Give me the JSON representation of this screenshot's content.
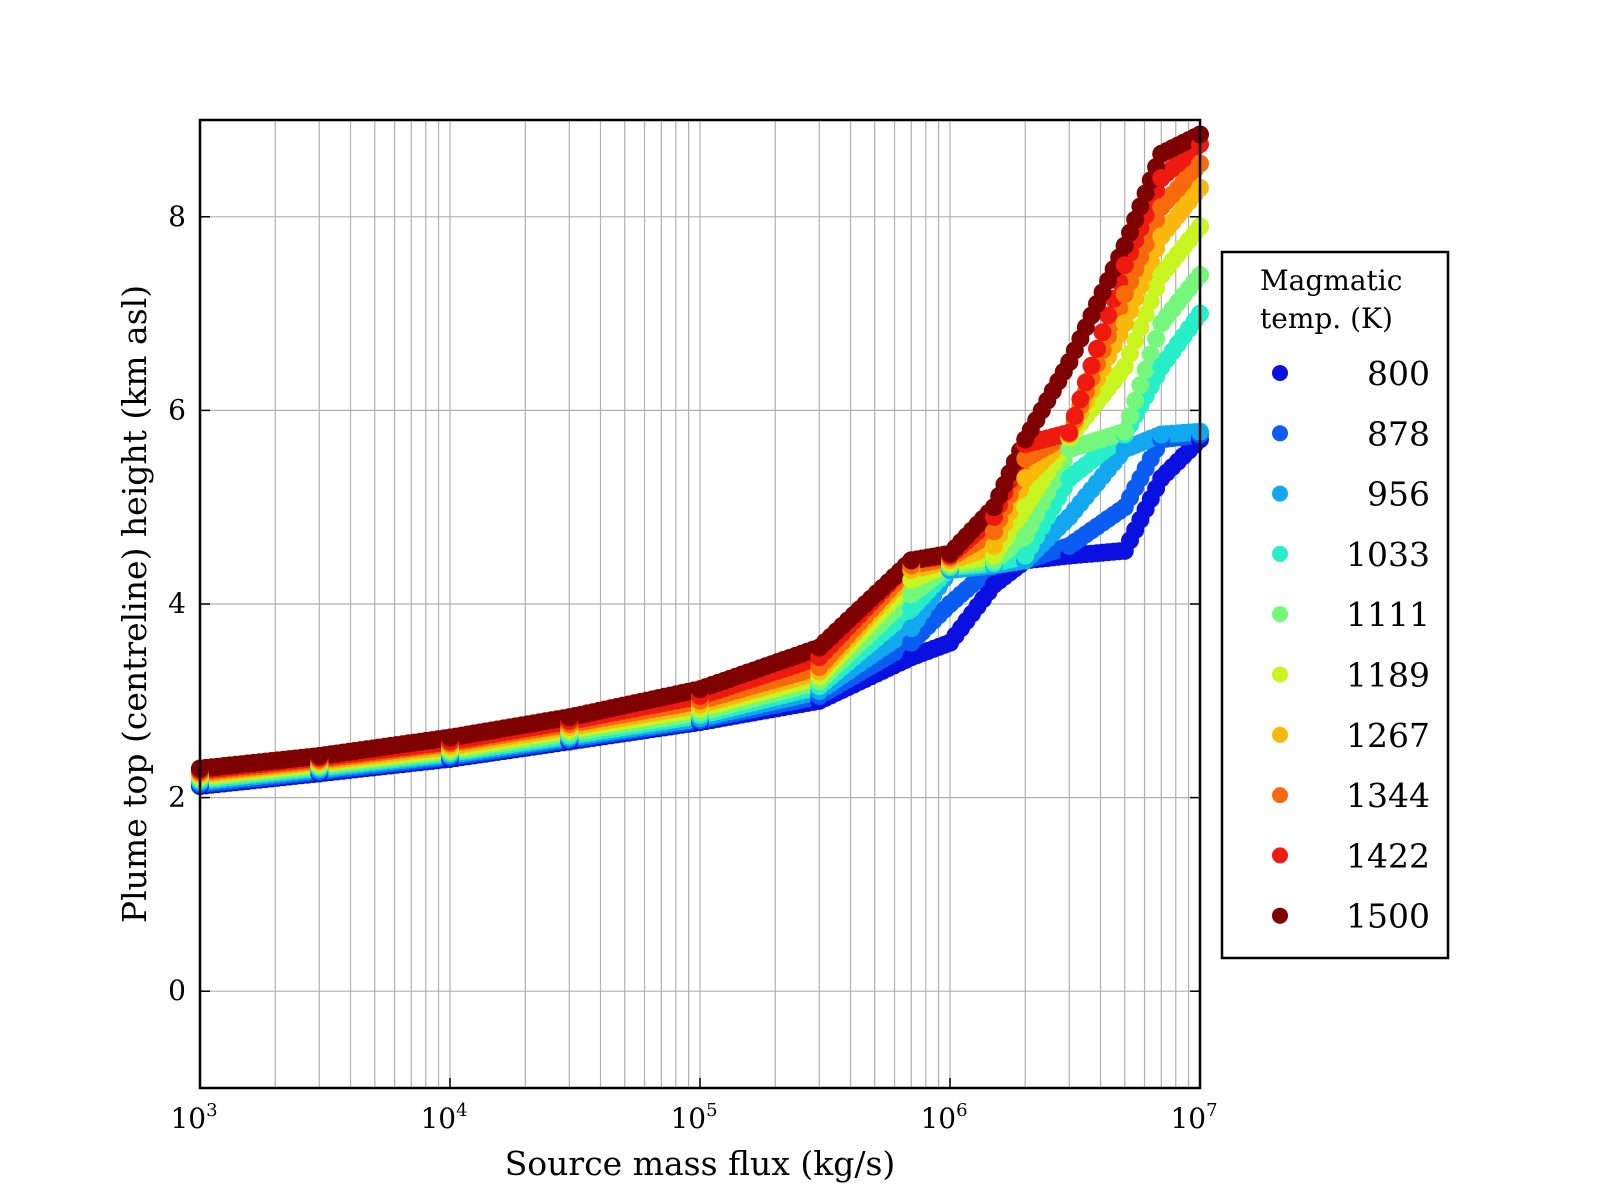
{
  "chart_data": {
    "type": "scatter",
    "xlabel": "Source mass flux (kg/s)",
    "ylabel": "Plume top (centreline) height (km asl)",
    "xscale": "log",
    "xlim": [
      1000,
      10000000
    ],
    "ylim": [
      -1,
      9
    ],
    "x_ticks": [
      {
        "base": "10",
        "exp": "3"
      },
      {
        "base": "10",
        "exp": "4"
      },
      {
        "base": "10",
        "exp": "5"
      },
      {
        "base": "10",
        "exp": "6"
      },
      {
        "base": "10",
        "exp": "7"
      }
    ],
    "y_ticks": [
      "0",
      "2",
      "4",
      "6",
      "8"
    ],
    "grid": true,
    "legend": {
      "title_lines": [
        "Magmatic",
        "temp. (K)"
      ],
      "placement": "outside-right"
    },
    "series": [
      {
        "name": "800",
        "color": "#0a10e0",
        "x": [
          1000,
          3000,
          10000,
          30000,
          100000,
          300000,
          700000,
          1000000,
          1500000,
          2000000,
          3000000,
          5000000,
          7000000,
          10000000
        ],
        "y": [
          2.12,
          2.25,
          2.4,
          2.58,
          2.78,
          3.0,
          3.45,
          3.6,
          4.2,
          4.45,
          4.5,
          4.55,
          5.3,
          5.7
        ]
      },
      {
        "name": "878",
        "color": "#0a5cf2",
        "x": [
          1000,
          3000,
          10000,
          30000,
          100000,
          300000,
          700000,
          1000000,
          1500000,
          2000000,
          3000000,
          5000000,
          7000000,
          10000000
        ],
        "y": [
          2.14,
          2.27,
          2.42,
          2.6,
          2.8,
          3.05,
          3.6,
          4.0,
          4.4,
          4.45,
          4.6,
          5.0,
          5.7,
          5.75
        ]
      },
      {
        "name": "956",
        "color": "#12a8f0",
        "x": [
          1000,
          3000,
          10000,
          30000,
          100000,
          300000,
          700000,
          1000000,
          1500000,
          2000000,
          3000000,
          5000000,
          7000000,
          10000000
        ],
        "y": [
          2.16,
          2.29,
          2.44,
          2.62,
          2.82,
          3.1,
          3.75,
          4.35,
          4.4,
          4.45,
          4.9,
          5.6,
          5.75,
          5.78
        ]
      },
      {
        "name": "1033",
        "color": "#26eec8",
        "x": [
          1000,
          3000,
          10000,
          30000,
          100000,
          300000,
          700000,
          1000000,
          1500000,
          2000000,
          3000000,
          5000000,
          7000000,
          10000000
        ],
        "y": [
          2.18,
          2.31,
          2.46,
          2.64,
          2.85,
          3.15,
          3.95,
          4.38,
          4.42,
          4.5,
          5.3,
          5.75,
          6.45,
          7.0
        ]
      },
      {
        "name": "1111",
        "color": "#74f77a",
        "x": [
          1000,
          3000,
          10000,
          30000,
          100000,
          300000,
          700000,
          1000000,
          1500000,
          2000000,
          3000000,
          5000000,
          7000000,
          10000000
        ],
        "y": [
          2.2,
          2.33,
          2.48,
          2.67,
          2.88,
          3.2,
          4.1,
          4.4,
          4.45,
          4.7,
          5.6,
          5.78,
          6.9,
          7.4
        ]
      },
      {
        "name": "1189",
        "color": "#c8f520",
        "x": [
          1000,
          3000,
          10000,
          30000,
          100000,
          300000,
          700000,
          1000000,
          1500000,
          2000000,
          3000000,
          5000000,
          7000000,
          10000000
        ],
        "y": [
          2.22,
          2.35,
          2.5,
          2.7,
          2.92,
          3.25,
          4.25,
          4.42,
          4.5,
          5.0,
          5.72,
          6.45,
          7.4,
          7.9
        ]
      },
      {
        "name": "1267",
        "color": "#fbb80c",
        "x": [
          1000,
          3000,
          10000,
          30000,
          100000,
          300000,
          700000,
          1000000,
          1500000,
          2000000,
          3000000,
          5000000,
          7000000,
          10000000
        ],
        "y": [
          2.24,
          2.37,
          2.53,
          2.73,
          2.96,
          3.3,
          4.35,
          4.45,
          4.6,
          5.3,
          5.75,
          6.9,
          7.8,
          8.3
        ]
      },
      {
        "name": "1344",
        "color": "#f66a0c",
        "x": [
          1000,
          3000,
          10000,
          30000,
          100000,
          300000,
          700000,
          1000000,
          1500000,
          2000000,
          3000000,
          5000000,
          7000000,
          10000000
        ],
        "y": [
          2.26,
          2.39,
          2.56,
          2.76,
          3.0,
          3.35,
          4.4,
          4.48,
          4.75,
          5.5,
          5.76,
          7.2,
          8.1,
          8.55
        ]
      },
      {
        "name": "1422",
        "color": "#ee1a10",
        "x": [
          1000,
          3000,
          10000,
          30000,
          100000,
          300000,
          700000,
          1000000,
          1500000,
          2000000,
          3000000,
          5000000,
          7000000,
          10000000
        ],
        "y": [
          2.28,
          2.41,
          2.58,
          2.79,
          3.05,
          3.45,
          4.45,
          4.5,
          4.9,
          5.65,
          5.77,
          7.5,
          8.4,
          8.75
        ]
      },
      {
        "name": "1500",
        "color": "#7f0000",
        "x": [
          1000,
          3000,
          10000,
          30000,
          100000,
          300000,
          700000,
          1000000,
          1500000,
          2000000,
          3000000,
          5000000,
          7000000,
          10000000
        ],
        "y": [
          2.3,
          2.43,
          2.62,
          2.83,
          3.12,
          3.55,
          4.45,
          4.52,
          5.0,
          5.7,
          6.5,
          7.7,
          8.65,
          8.85
        ]
      }
    ]
  }
}
